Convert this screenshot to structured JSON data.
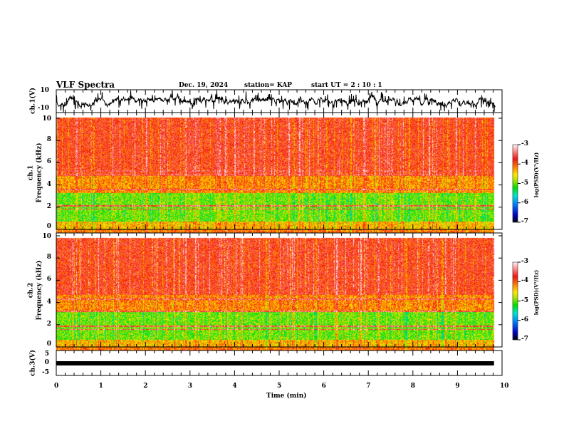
{
  "header": {
    "title": "VLF Spectra",
    "date": "Dec. 19, 2024",
    "station": "station= KAP",
    "start": "start  UT =   2 : 10 : 1"
  },
  "chart_data": [
    {
      "type": "line",
      "name": "ch1-waveform",
      "ylabel": "ch.1(V)",
      "ylim": [
        -10,
        10
      ],
      "ytick_labels": [
        "10",
        "-10"
      ],
      "xlim": [
        0,
        10
      ],
      "series": [
        {
          "name": "ch.1",
          "description_values": "noisy waveform mostly between -8 and 8 V"
        }
      ]
    },
    {
      "type": "heatmap",
      "name": "ch1-spectrogram",
      "ylabel_top": "ch.1",
      "ylabel": "Frequency  (kHz)",
      "ylim": [
        0,
        10
      ],
      "ytick_labels": [
        "0",
        "2",
        "4",
        "6",
        "8",
        "10"
      ],
      "xlim": [
        0,
        9.8
      ],
      "colorbar": {
        "label": "log(PSD)(V²/Hz)",
        "range": [
          -7,
          -3
        ],
        "tick_labels": [
          "-3",
          "-4",
          "-5",
          "-6",
          "-7"
        ]
      }
    },
    {
      "type": "heatmap",
      "name": "ch2-spectrogram",
      "ylabel_top": "ch.2",
      "ylabel": "Frequency  (kHz)",
      "ylim": [
        0,
        10
      ],
      "ytick_labels": [
        "0",
        "2",
        "4",
        "6",
        "8",
        "10"
      ],
      "xlim": [
        0,
        9.8
      ],
      "colorbar": {
        "label": "log(PSD)(V²/Hz)",
        "range": [
          -7,
          -3
        ],
        "tick_labels": [
          "-3",
          "-4",
          "-5",
          "-6",
          "-7"
        ]
      }
    },
    {
      "type": "line",
      "name": "ch3-waveform",
      "ylabel": "ch.3(V)",
      "ylim": [
        -5,
        5
      ],
      "ytick_labels": [
        "5",
        "0",
        "-5"
      ],
      "constant_value": 0,
      "xlim": [
        0,
        10
      ],
      "xlabel": "Time  (min)",
      "xtick_labels": [
        "0",
        "1",
        "2",
        "3",
        "4",
        "5",
        "6",
        "7",
        "8",
        "9",
        "10"
      ]
    }
  ]
}
